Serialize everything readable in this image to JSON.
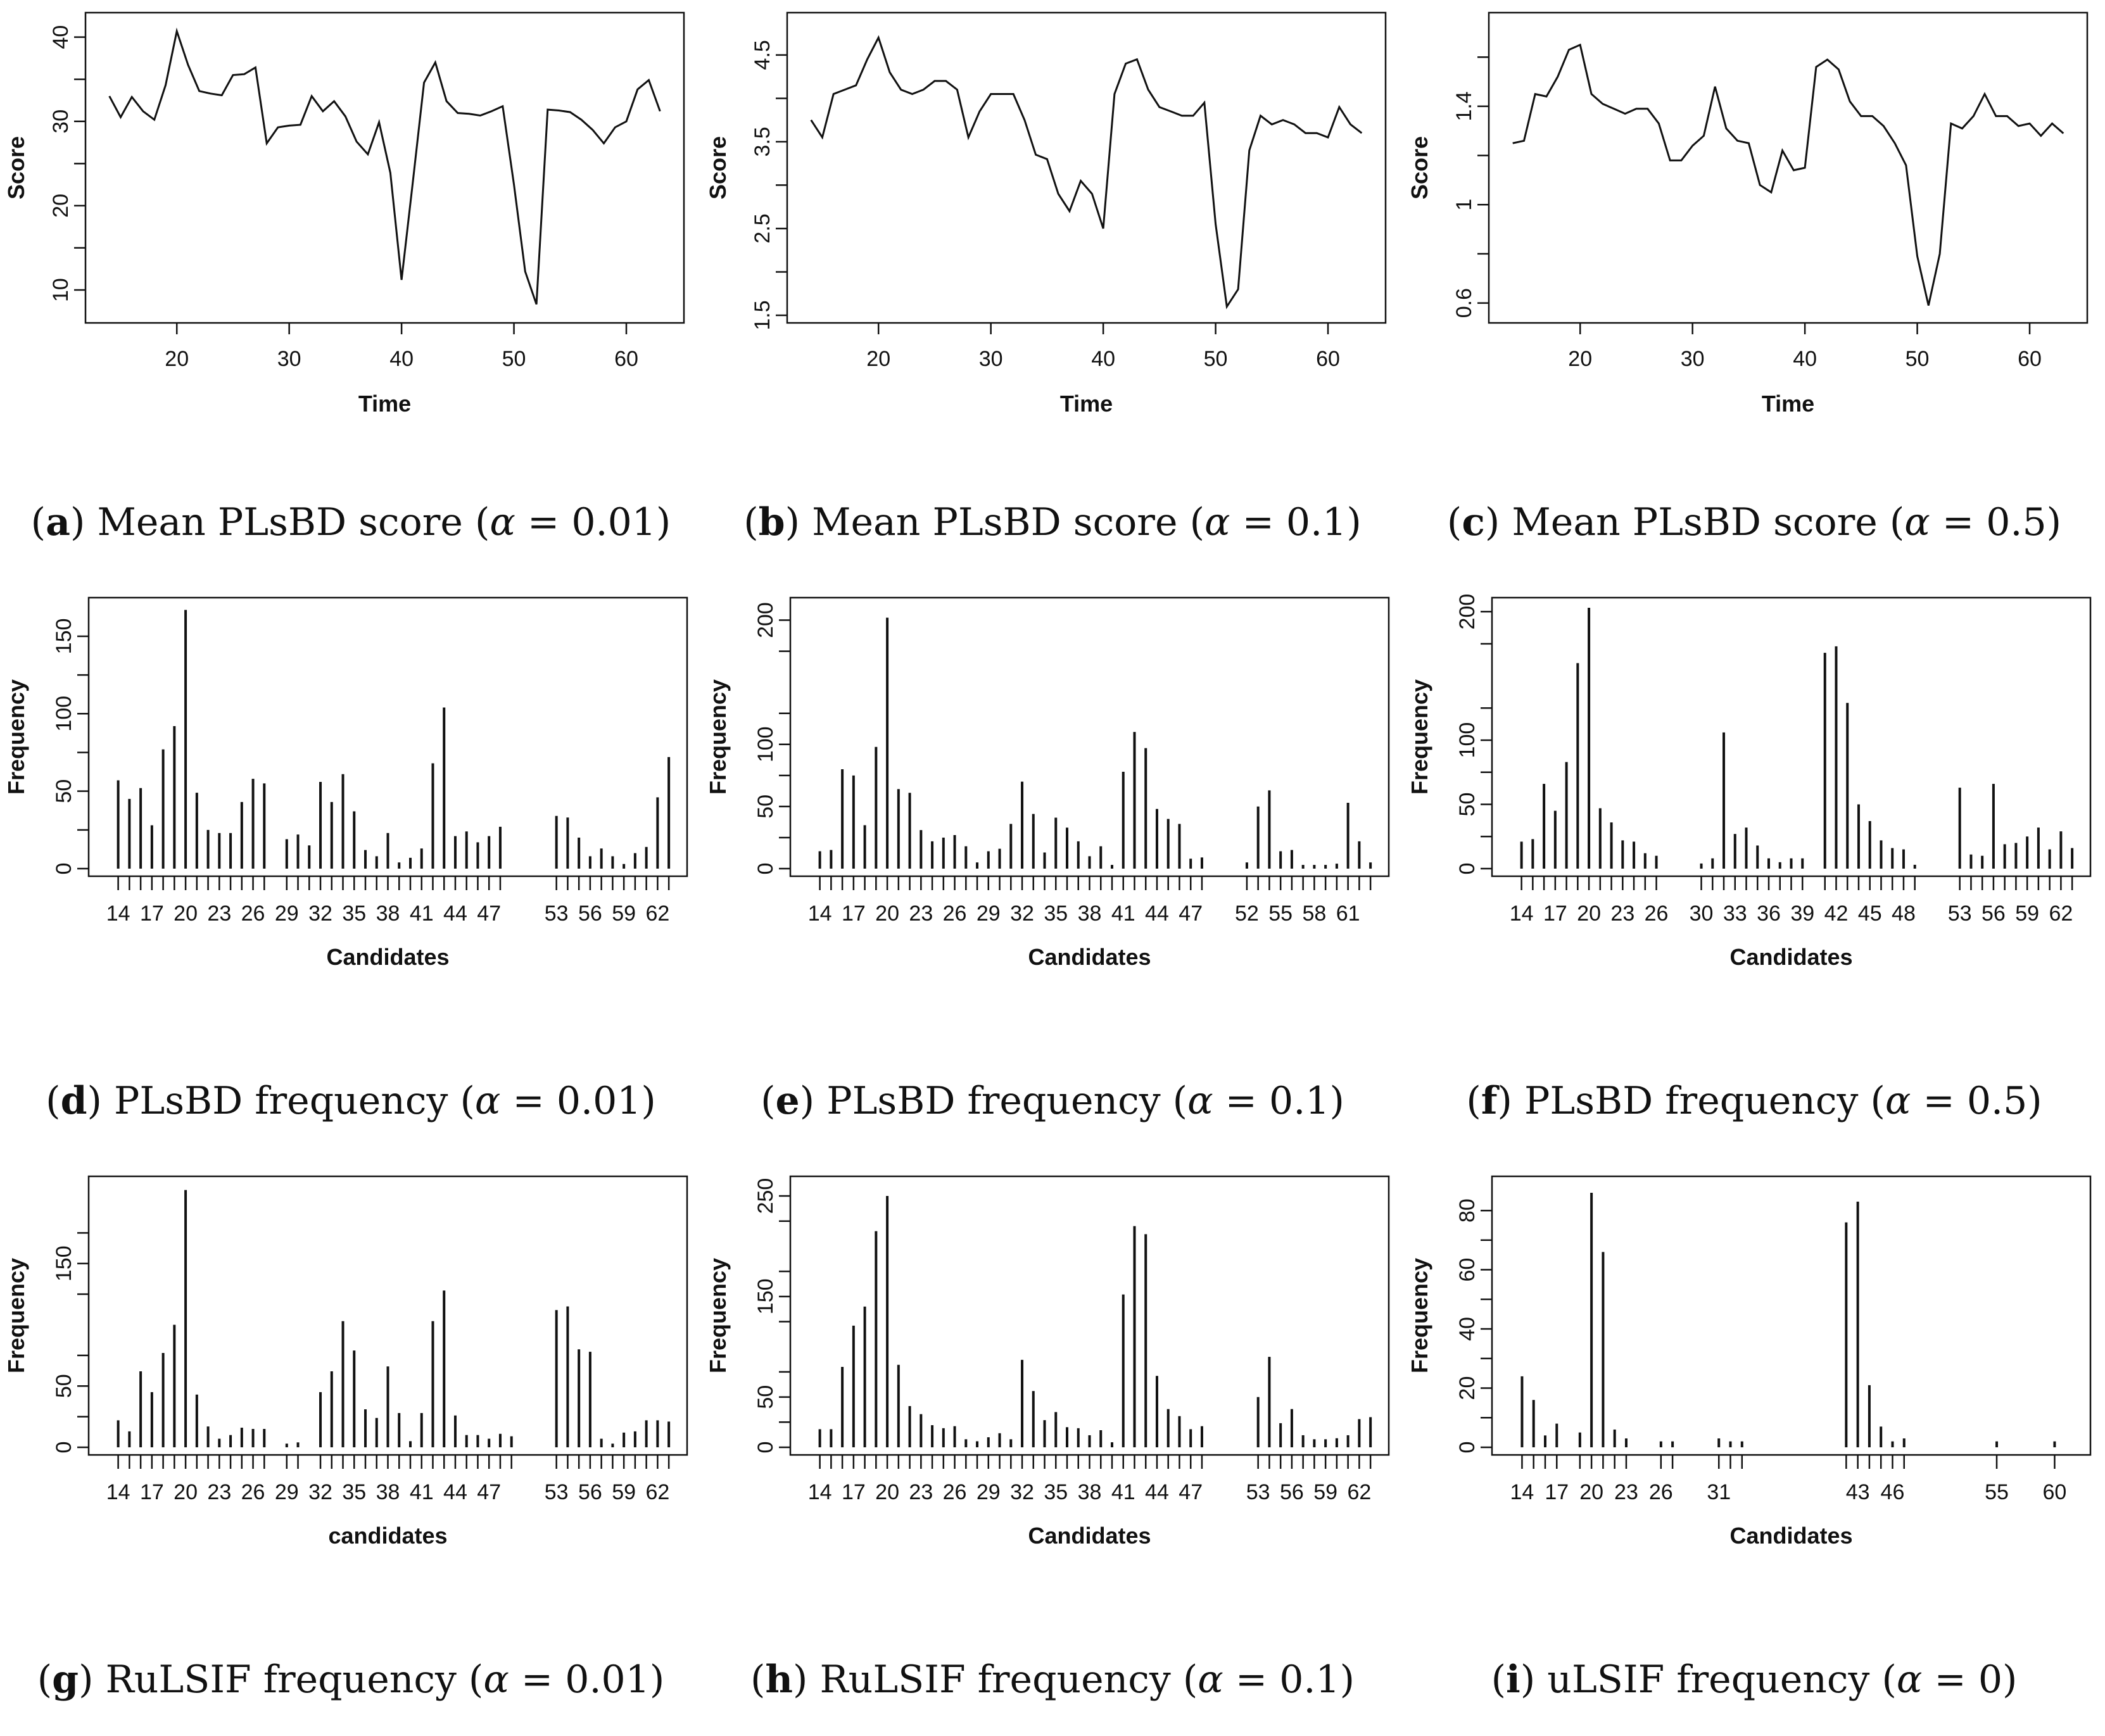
{
  "panels": [
    {
      "id": "a",
      "letter": "a",
      "caption_text": "Mean PLsBD score (",
      "alpha_symbol": "α",
      "alpha_value": " = 0.01)",
      "chart_data": {
        "type": "line",
        "xlabel": "Time",
        "ylabel": "Score",
        "xlim": [
          13,
          64
        ],
        "ylim": [
          7,
          42
        ],
        "xticks": [
          20,
          30,
          40,
          50,
          60
        ],
        "yticks": [
          10,
          20,
          30,
          40
        ],
        "x": [
          14,
          15,
          16,
          17,
          18,
          19,
          20,
          21,
          22,
          23,
          24,
          25,
          26,
          27,
          28,
          29,
          30,
          31,
          32,
          33,
          34,
          35,
          36,
          37,
          38,
          39,
          40,
          41,
          42,
          43,
          44,
          45,
          46,
          47,
          48,
          49,
          50,
          51,
          52,
          53,
          54,
          55,
          56,
          57,
          58,
          59,
          60,
          61,
          62,
          63
        ],
        "y": [
          33,
          30.5,
          32.9,
          31.2,
          30.2,
          34.3,
          40.7,
          36.7,
          33.6,
          33.3,
          33.1,
          35.5,
          35.6,
          36.4,
          27.4,
          29.3,
          29.5,
          29.6,
          33,
          31.2,
          32.4,
          30.6,
          27.6,
          26.1,
          29.9,
          23.9,
          11.2,
          22.8,
          34.6,
          37,
          32.4,
          31,
          30.9,
          30.7,
          31.2,
          31.8,
          22.5,
          12.2,
          8.3,
          31.4,
          31.3,
          31.1,
          30.2,
          29,
          27.4,
          29.3,
          30,
          33.8,
          34.9,
          31.2
        ]
      }
    },
    {
      "id": "b",
      "letter": "b",
      "caption_text": "Mean PLsBD score (",
      "alpha_symbol": "α",
      "alpha_value": " = 0.1)",
      "chart_data": {
        "type": "line",
        "xlabel": "Time",
        "ylabel": "Score",
        "xlim": [
          13,
          64
        ],
        "ylim": [
          1.5,
          4.9
        ],
        "xticks": [
          20,
          30,
          40,
          50,
          60
        ],
        "yticks": [
          1.5,
          2.5,
          3.5,
          4.5
        ],
        "x": [
          14,
          15,
          16,
          17,
          18,
          19,
          20,
          21,
          22,
          23,
          24,
          25,
          26,
          27,
          28,
          29,
          30,
          31,
          32,
          33,
          34,
          35,
          36,
          37,
          38,
          39,
          40,
          41,
          42,
          43,
          44,
          45,
          46,
          47,
          48,
          49,
          50,
          51,
          52,
          53,
          54,
          55,
          56,
          57,
          58,
          59,
          60,
          61,
          62,
          63
        ],
        "y": [
          3.75,
          3.55,
          4.05,
          4.1,
          4.15,
          4.45,
          4.7,
          4.3,
          4.1,
          4.05,
          4.1,
          4.2,
          4.2,
          4.1,
          3.55,
          3.85,
          4.05,
          4.05,
          4.05,
          3.75,
          3.35,
          3.3,
          2.9,
          2.7,
          3.05,
          2.9,
          2.5,
          4.05,
          4.4,
          4.45,
          4.1,
          3.9,
          3.85,
          3.8,
          3.8,
          3.95,
          2.55,
          1.6,
          1.8,
          3.4,
          3.8,
          3.7,
          3.75,
          3.7,
          3.6,
          3.6,
          3.55,
          3.9,
          3.7,
          3.6
        ]
      }
    },
    {
      "id": "c",
      "letter": "c",
      "caption_text": "Mean PLsBD score (",
      "alpha_symbol": "α",
      "alpha_value": " = 0.5)",
      "chart_data": {
        "type": "line",
        "xlabel": "Time",
        "ylabel": "Score",
        "xlim": [
          13,
          64
        ],
        "ylim": [
          0.55,
          1.75
        ],
        "xticks": [
          20,
          30,
          40,
          50,
          60
        ],
        "yticks": [
          0.6,
          1.0,
          1.4
        ],
        "x": [
          14,
          15,
          16,
          17,
          18,
          19,
          20,
          21,
          22,
          23,
          24,
          25,
          26,
          27,
          28,
          29,
          30,
          31,
          32,
          33,
          34,
          35,
          36,
          37,
          38,
          39,
          40,
          41,
          42,
          43,
          44,
          45,
          46,
          47,
          48,
          49,
          50,
          51,
          52,
          53,
          54,
          55,
          56,
          57,
          58,
          59,
          60,
          61,
          62,
          63
        ],
        "y": [
          1.25,
          1.26,
          1.45,
          1.44,
          1.52,
          1.63,
          1.65,
          1.45,
          1.41,
          1.39,
          1.37,
          1.39,
          1.39,
          1.33,
          1.18,
          1.18,
          1.24,
          1.28,
          1.48,
          1.31,
          1.26,
          1.25,
          1.08,
          1.05,
          1.22,
          1.14,
          1.15,
          1.56,
          1.59,
          1.55,
          1.42,
          1.36,
          1.36,
          1.32,
          1.25,
          1.16,
          0.79,
          0.59,
          0.8,
          1.33,
          1.31,
          1.36,
          1.45,
          1.36,
          1.36,
          1.32,
          1.33,
          1.28,
          1.33,
          1.29
        ]
      }
    },
    {
      "id": "d",
      "letter": "d",
      "caption_text": "PLsBD frequency (",
      "alpha_symbol": "α",
      "alpha_value": " = 0.01)",
      "chart_data": {
        "type": "bar",
        "xlabel": "Candidates",
        "ylabel": "Frequency",
        "xlim": [
          12.5,
          63.5
        ],
        "ylim": [
          0,
          170
        ],
        "yticks": [
          0,
          50,
          100,
          150
        ],
        "xticklabels": [
          14,
          17,
          20,
          23,
          26,
          29,
          32,
          35,
          38,
          41,
          44,
          47,
          53,
          56,
          59,
          62
        ],
        "candidates": [
          14,
          15,
          16,
          17,
          18,
          19,
          20,
          21,
          22,
          23,
          24,
          25,
          26,
          27,
          29,
          30,
          31,
          32,
          33,
          34,
          35,
          36,
          37,
          38,
          39,
          40,
          41,
          42,
          43,
          44,
          45,
          46,
          47,
          48,
          53,
          54,
          55,
          56,
          57,
          58,
          59,
          60,
          61,
          62,
          63
        ],
        "values": [
          57,
          45,
          52,
          28,
          77,
          92,
          167,
          49,
          25,
          23,
          23,
          43,
          58,
          55,
          19,
          22,
          15,
          56,
          43,
          61,
          37,
          12,
          8,
          23,
          4,
          7,
          13,
          68,
          104,
          21,
          24,
          17,
          21,
          27,
          34,
          33,
          20,
          8,
          13,
          8,
          3,
          10,
          14,
          46,
          72
        ]
      }
    },
    {
      "id": "e",
      "letter": "e",
      "caption_text": "PLsBD frequency (",
      "alpha_symbol": "α",
      "alpha_value": " = 0.1)",
      "chart_data": {
        "type": "bar",
        "xlabel": "Candidates",
        "ylabel": "Frequency",
        "xlim": [
          12.5,
          63.5
        ],
        "ylim": [
          0,
          212
        ],
        "yticks": [
          0,
          50,
          100,
          200
        ],
        "xticklabels": [
          14,
          17,
          20,
          23,
          26,
          29,
          32,
          35,
          38,
          41,
          44,
          47,
          52,
          55,
          58,
          61
        ],
        "candidates": [
          14,
          15,
          16,
          17,
          18,
          19,
          20,
          21,
          22,
          23,
          24,
          25,
          26,
          27,
          28,
          29,
          30,
          31,
          32,
          33,
          34,
          35,
          36,
          37,
          38,
          39,
          40,
          41,
          42,
          43,
          44,
          45,
          46,
          47,
          48,
          52,
          53,
          54,
          55,
          56,
          57,
          58,
          59,
          60,
          61,
          62,
          63
        ],
        "values": [
          14,
          15,
          80,
          75,
          35,
          98,
          202,
          64,
          61,
          31,
          22,
          25,
          27,
          18,
          5,
          14,
          16,
          36,
          70,
          44,
          13,
          41,
          33,
          22,
          10,
          18,
          3,
          78,
          110,
          97,
          48,
          40,
          36,
          8,
          9,
          5,
          50,
          63,
          14,
          15,
          3,
          3,
          3,
          4,
          53,
          22,
          5
        ]
      }
    },
    {
      "id": "f",
      "letter": "f",
      "caption_text": "PLsBD frequency (",
      "alpha_symbol": "α",
      "alpha_value": " = 0.5)",
      "chart_data": {
        "type": "bar",
        "xlabel": "Candidates",
        "ylabel": "Frequency",
        "xlim": [
          12.5,
          63.5
        ],
        "ylim": [
          0,
          205
        ],
        "yticks": [
          0,
          50,
          100,
          200
        ],
        "xticklabels": [
          14,
          17,
          20,
          23,
          26,
          30,
          33,
          36,
          39,
          42,
          45,
          48,
          53,
          56,
          59,
          62
        ],
        "candidates": [
          14,
          15,
          16,
          17,
          18,
          19,
          20,
          21,
          22,
          23,
          24,
          25,
          26,
          30,
          31,
          32,
          33,
          34,
          35,
          36,
          37,
          38,
          39,
          41,
          42,
          43,
          44,
          45,
          46,
          47,
          48,
          49,
          53,
          54,
          55,
          56,
          57,
          58,
          59,
          60,
          61,
          62,
          63
        ],
        "values": [
          21,
          23,
          66,
          45,
          83,
          160,
          203,
          47,
          36,
          22,
          21,
          12,
          10,
          4,
          8,
          106,
          27,
          32,
          18,
          8,
          5,
          8,
          8,
          168,
          173,
          129,
          50,
          37,
          22,
          16,
          15,
          3,
          63,
          11,
          10,
          66,
          19,
          20,
          25,
          32,
          15,
          29,
          16
        ]
      }
    },
    {
      "id": "g",
      "letter": "g",
      "caption_text": "RuLSIF frequency (",
      "alpha_symbol": "α",
      "alpha_value": " = 0.01)",
      "chart_data": {
        "type": "bar",
        "xlabel": "candidates",
        "ylabel": "Frequency",
        "xlim": [
          12.5,
          63.5
        ],
        "ylim": [
          0,
          215
        ],
        "yticks": [
          0,
          50,
          150
        ],
        "xticklabels": [
          14,
          17,
          20,
          23,
          26,
          29,
          32,
          35,
          38,
          41,
          44,
          47,
          53,
          56,
          59,
          62
        ],
        "candidates": [
          14,
          15,
          16,
          17,
          18,
          19,
          20,
          21,
          22,
          23,
          24,
          25,
          26,
          27,
          29,
          30,
          32,
          33,
          34,
          35,
          36,
          37,
          38,
          39,
          40,
          41,
          42,
          43,
          44,
          45,
          46,
          47,
          48,
          49,
          53,
          54,
          55,
          56,
          57,
          58,
          59,
          60,
          61,
          62,
          63
        ],
        "values": [
          22,
          13,
          62,
          45,
          77,
          100,
          210,
          43,
          17,
          7,
          10,
          16,
          15,
          15,
          3,
          4,
          45,
          62,
          103,
          79,
          31,
          24,
          66,
          28,
          5,
          28,
          103,
          128,
          26,
          10,
          10,
          7,
          11,
          9,
          112,
          115,
          80,
          78,
          7,
          3,
          12,
          13,
          22,
          22,
          21
        ]
      }
    },
    {
      "id": "h",
      "letter": "h",
      "caption_text": "RuLSIF frequency (",
      "alpha_symbol": "α",
      "alpha_value": " = 0.1)",
      "chart_data": {
        "type": "bar",
        "xlabel": "Candidates",
        "ylabel": "Frequency",
        "xlim": [
          12.5,
          63.5
        ],
        "ylim": [
          0,
          262
        ],
        "yticks": [
          0,
          50,
          150,
          250
        ],
        "xticklabels": [
          14,
          17,
          20,
          23,
          26,
          29,
          32,
          35,
          38,
          41,
          44,
          47,
          53,
          56,
          59,
          62
        ],
        "candidates": [
          14,
          15,
          16,
          17,
          18,
          19,
          20,
          21,
          22,
          23,
          24,
          25,
          26,
          27,
          28,
          29,
          30,
          31,
          32,
          33,
          34,
          35,
          36,
          37,
          38,
          39,
          40,
          41,
          42,
          43,
          44,
          45,
          46,
          47,
          48,
          53,
          54,
          55,
          56,
          57,
          58,
          59,
          60,
          61,
          62,
          63
        ],
        "values": [
          18,
          18,
          80,
          121,
          140,
          215,
          250,
          82,
          41,
          33,
          22,
          19,
          21,
          8,
          6,
          10,
          14,
          8,
          87,
          56,
          27,
          35,
          20,
          19,
          12,
          17,
          5,
          152,
          220,
          212,
          71,
          38,
          31,
          18,
          21,
          50,
          90,
          24,
          38,
          12,
          8,
          8,
          9,
          12,
          28,
          30
        ]
      }
    },
    {
      "id": "i",
      "letter": "i",
      "caption_text": "uLSIF frequency (",
      "alpha_symbol": "α",
      "alpha_value": " = 0)",
      "chart_data": {
        "type": "bar",
        "xlabel": "Candidates",
        "ylabel": "Frequency",
        "xlim": [
          12.5,
          62
        ],
        "ylim": [
          0,
          89
        ],
        "yticks": [
          0,
          20,
          40,
          60,
          80
        ],
        "xticklabels": [
          14,
          17,
          20,
          23,
          26,
          31,
          43,
          46,
          55,
          60
        ],
        "candidates": [
          14,
          15,
          16,
          17,
          19,
          20,
          21,
          22,
          23,
          26,
          27,
          31,
          32,
          33,
          42,
          43,
          44,
          45,
          46,
          47,
          55,
          60
        ],
        "values": [
          24,
          16,
          4,
          8,
          5,
          86,
          66,
          6,
          3,
          2,
          2,
          3,
          2,
          2,
          76,
          83,
          21,
          7,
          2,
          3,
          2,
          2
        ]
      }
    }
  ]
}
